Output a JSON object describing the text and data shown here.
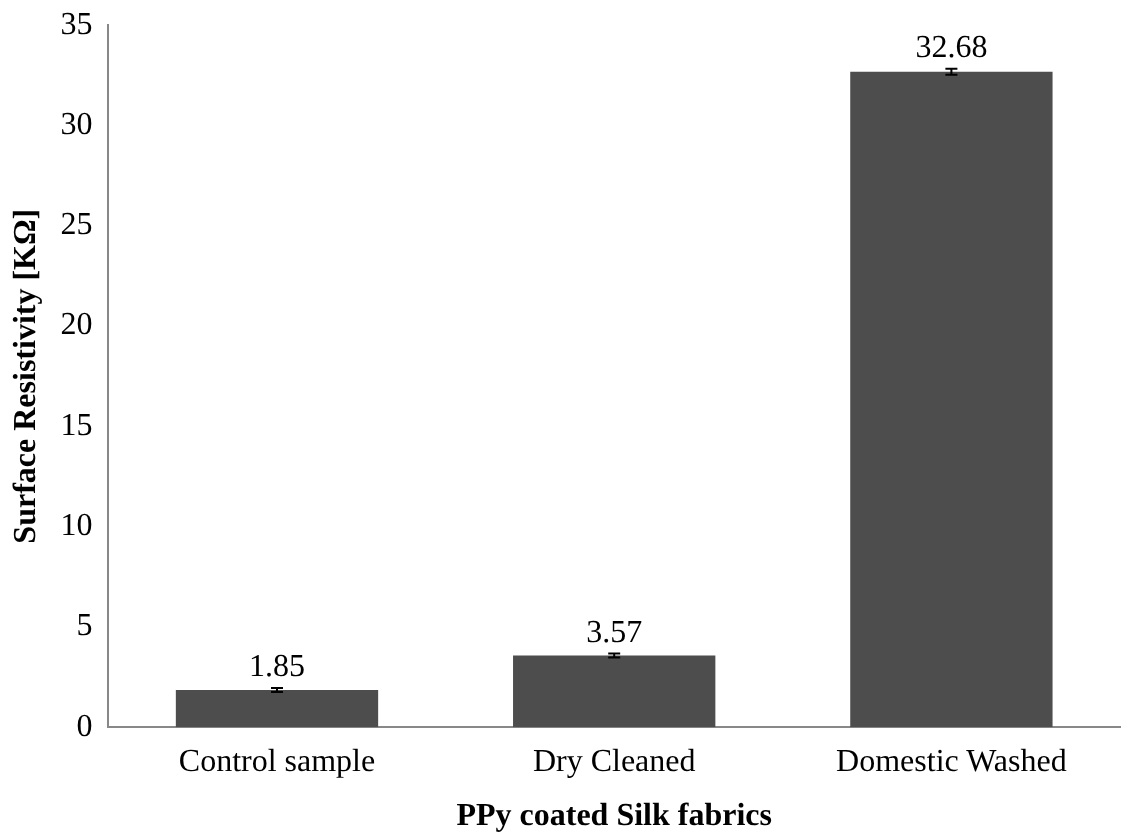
{
  "chart_data": {
    "type": "bar",
    "xlabel": "PPy coated Silk fabrics",
    "ylabel": "Surface Resistivity [KΩ]",
    "categories": [
      "Control sample",
      "Dry Cleaned",
      "Domestic Washed"
    ],
    "values": [
      1.85,
      3.57,
      32.68
    ],
    "color": "#4d4d4d",
    "errors": [
      0.1,
      0.1,
      0.15
    ],
    "ylim": [
      0,
      35
    ],
    "yticks": [
      0,
      5,
      10,
      15,
      20,
      25,
      30,
      35
    ],
    "grid": false,
    "legend": false,
    "data_labels": true
  }
}
